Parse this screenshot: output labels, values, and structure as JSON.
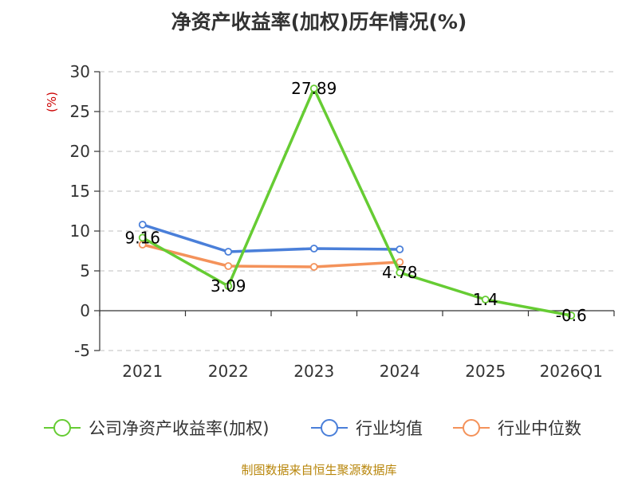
{
  "chart_data": {
    "type": "line",
    "title": "净资产收益率(加权)历年情况(%)",
    "ylabel": "(%)",
    "xlabel": "",
    "categories": [
      "2021",
      "2022",
      "2023",
      "2024",
      "2025",
      "2026Q1"
    ],
    "ylim": [
      -5,
      30
    ],
    "yticks": [
      30,
      25,
      20,
      15,
      10,
      5,
      0,
      -5
    ],
    "grid": true,
    "legend_position": "bottom",
    "series": [
      {
        "name": "公司净资产收益率(加权)",
        "color": "#66cc33",
        "values": [
          9.16,
          3.09,
          27.89,
          4.78,
          1.4,
          -0.6
        ],
        "labels": [
          "9.16",
          "3.09",
          "27.89",
          "4.78",
          "1.4",
          "-0.6"
        ]
      },
      {
        "name": "行业均值",
        "color": "#4a7fd9",
        "values": [
          10.8,
          7.4,
          7.8,
          7.7,
          null,
          null
        ]
      },
      {
        "name": "行业中位数",
        "color": "#f4925a",
        "values": [
          8.3,
          5.6,
          5.5,
          6.1,
          null,
          null
        ]
      }
    ]
  },
  "source": "制图数据来自恒生聚源数据库"
}
